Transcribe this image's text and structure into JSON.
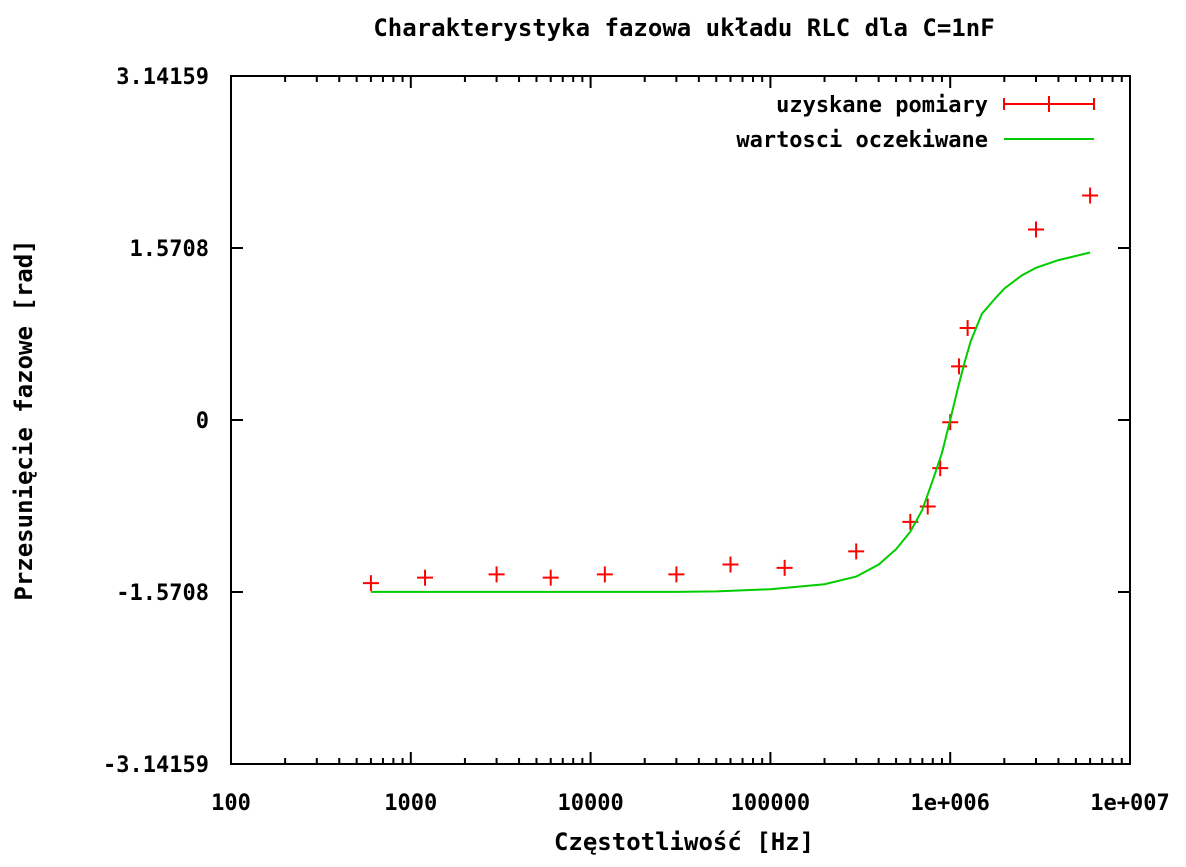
{
  "chart_data": {
    "type": "scatter",
    "title": "Charakterystyka fazowa układu RLC dla C=1nF",
    "xlabel": "Częstotliwość [Hz]",
    "ylabel": "Przesunięcie fazowe [rad]",
    "x_scale": "log",
    "xlim": [
      100,
      10000000
    ],
    "ylim": [
      -3.14159,
      3.14159
    ],
    "x_ticks": [
      100,
      1000,
      10000,
      100000,
      1000000,
      10000000
    ],
    "x_tick_labels": [
      "100",
      "1000",
      "10000",
      "100000",
      "1e+006",
      "1e+007"
    ],
    "y_ticks": [
      -3.14159,
      -1.5708,
      0,
      1.5708,
      3.14159
    ],
    "y_tick_labels": [
      "-3.14159",
      "-1.5708",
      "0",
      "1.5708",
      "3.14159"
    ],
    "grid": false,
    "legend_position": "top-right",
    "series": [
      {
        "name": "uzyskane pomiary",
        "kind": "points",
        "color": "#ff0000",
        "x": [
          600,
          1200,
          3000,
          6000,
          12000,
          30000,
          60000,
          120000,
          300000,
          600000,
          750000,
          880000,
          1000000,
          1120000,
          1250000,
          3000000,
          6000000
        ],
        "y": [
          -1.49,
          -1.44,
          -1.41,
          -1.44,
          -1.41,
          -1.41,
          -1.32,
          -1.35,
          -1.2,
          -0.93,
          -0.79,
          -0.44,
          -0.02,
          0.49,
          0.84,
          1.74,
          2.05
        ]
      },
      {
        "name": "wartosci oczekiwane",
        "kind": "line",
        "color": "#00cc00",
        "x": [
          600,
          1000,
          3000,
          10000,
          30000,
          50000,
          100000,
          200000,
          300000,
          400000,
          500000,
          600000,
          700000,
          800000,
          900000,
          1000000,
          1100000,
          1200000,
          1300000,
          1500000,
          1800000,
          2000000,
          2500000,
          3000000,
          4000000,
          6000000
        ],
        "y": [
          -1.57,
          -1.57,
          -1.57,
          -1.57,
          -1.57,
          -1.565,
          -1.545,
          -1.5,
          -1.43,
          -1.32,
          -1.18,
          -1.02,
          -0.82,
          -0.55,
          -0.3,
          0.0,
          0.28,
          0.52,
          0.72,
          0.97,
          1.12,
          1.2,
          1.32,
          1.39,
          1.46,
          1.53
        ]
      }
    ]
  }
}
